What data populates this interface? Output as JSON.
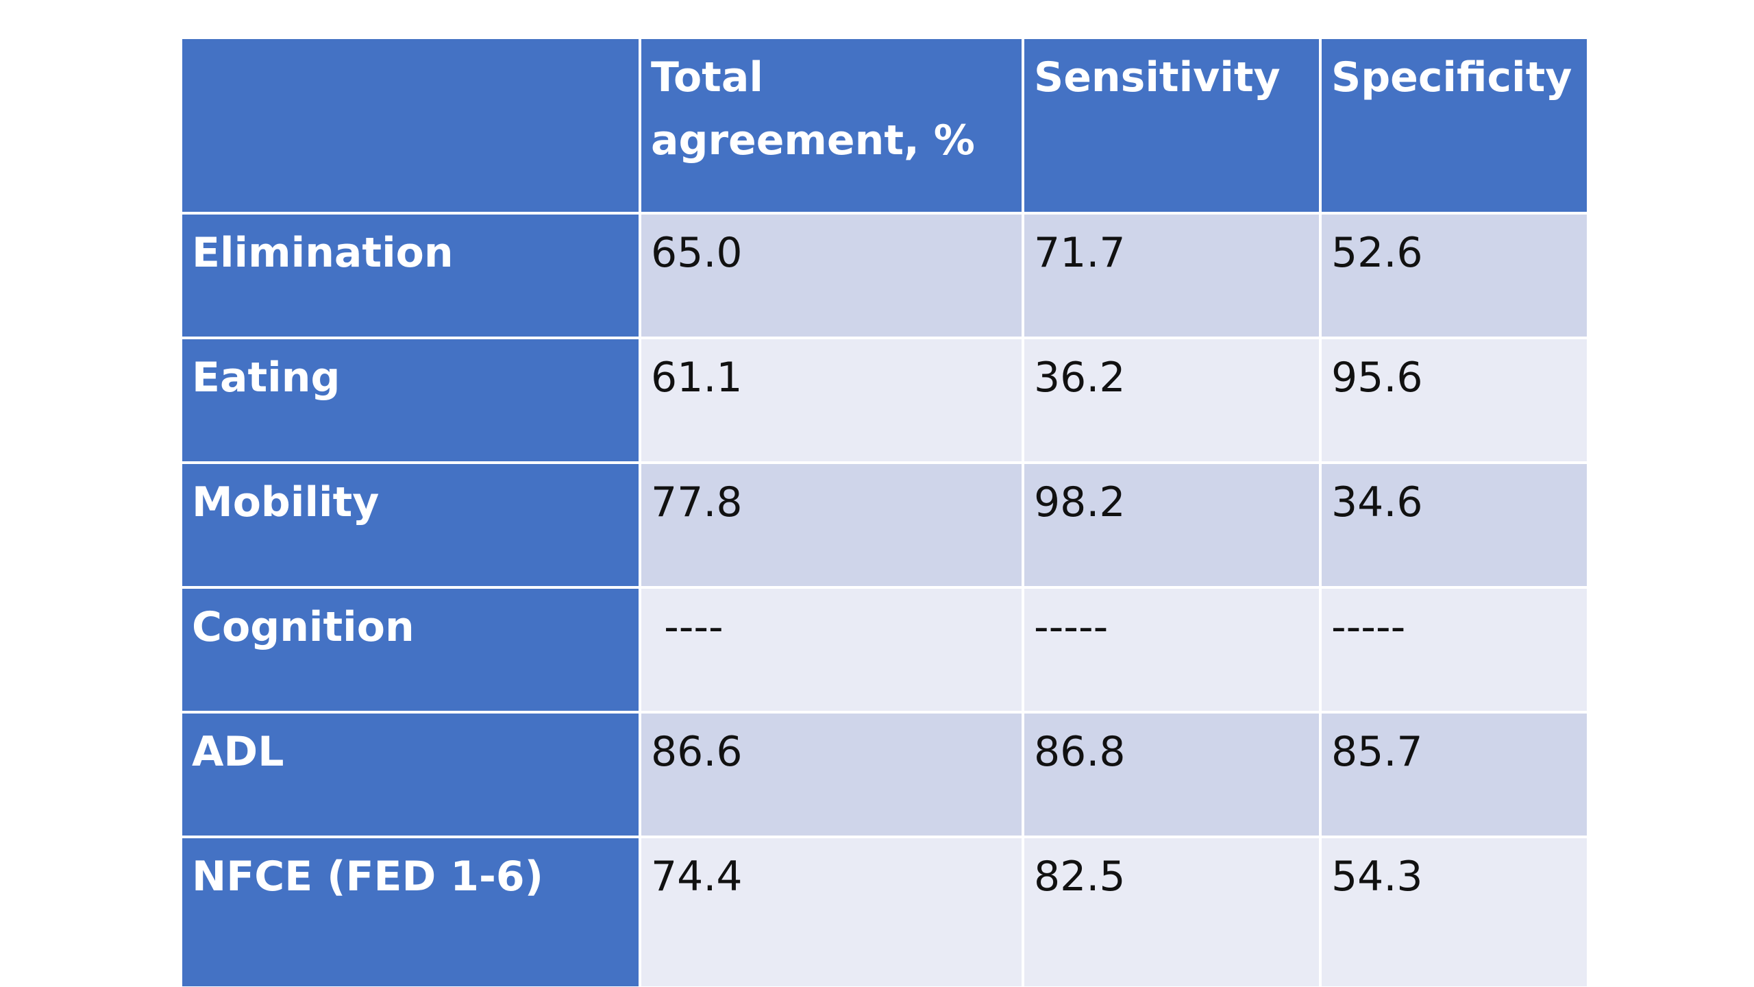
{
  "table": {
    "header": {
      "row_label": "",
      "total_agreement": "Total agreement, %",
      "sensitivity": "Sensitivity",
      "specificity": "Specificity"
    },
    "rows": [
      {
        "label": "Elimination",
        "total_agreement": "65.0",
        "sensitivity": "71.7",
        "specificity": "52.6"
      },
      {
        "label": "Eating",
        "total_agreement": "61.1",
        "sensitivity": "36.2",
        "specificity": "95.6"
      },
      {
        "label": "Mobility",
        "total_agreement": "77.8",
        "sensitivity": "98.2",
        "specificity": "34.6"
      },
      {
        "label": "Cognition",
        "total_agreement": " ----",
        "sensitivity": "-----",
        "specificity": "-----"
      },
      {
        "label": "ADL",
        "total_agreement": "86.6",
        "sensitivity": "86.8",
        "specificity": "85.7"
      },
      {
        "label": "NFCE (FED 1-6)",
        "total_agreement": "74.4",
        "sensitivity": "82.5",
        "specificity": "54.3"
      }
    ]
  },
  "colors": {
    "header_blue": "#4472c4",
    "row_band_dark": "#cfd5ea",
    "row_band_light": "#e9ebf5"
  }
}
